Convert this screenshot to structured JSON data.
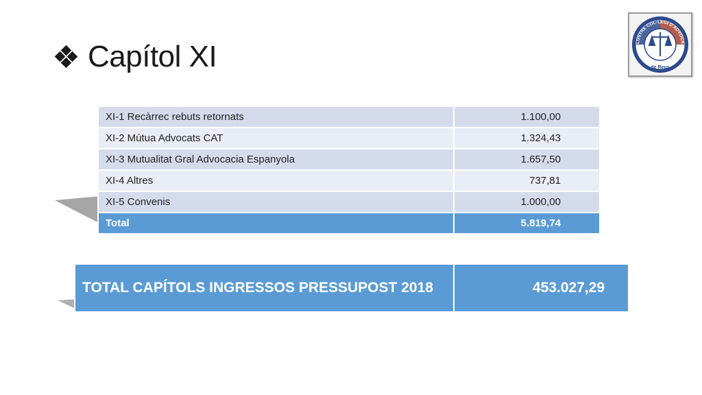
{
  "slide": {
    "title": "Capítol XI",
    "logo_text": "IL·LUSTRE COL·LEGI D'ADVOCATS",
    "logo_subtext": "de Reus"
  },
  "detail_table": {
    "rows": [
      {
        "label": "XI-1 Recàrrec rebuts retornats",
        "value": "1.100,00"
      },
      {
        "label": "XI-2 Mútua Advocats CAT",
        "value": "1.324,43"
      },
      {
        "label": "XI-3 Mutualitat Gral Advocacia Espanyola",
        "value": "1.657,50"
      },
      {
        "label": "XI-4 Altres",
        "value": "737,81"
      },
      {
        "label": "XI-5 Convenis",
        "value": "1.000,00"
      }
    ],
    "total": {
      "label": "Total",
      "value": "5.819,74"
    }
  },
  "grand_total": {
    "label": "TOTAL CAPÍTOLS INGRESSOS PRESSUPOST 2018",
    "value": "453.027,29"
  },
  "colors": {
    "accent": "#5b9bd5",
    "row_dark": "#d4dcec",
    "row_light": "#e9edf5"
  }
}
